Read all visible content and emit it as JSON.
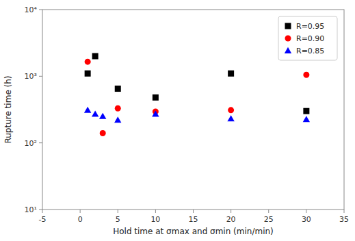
{
  "chart_data": {
    "type": "scatter",
    "x_label": "Hold time at σmax and σmin (min/min)",
    "y_label": "Rupture time (h)",
    "log": "y",
    "grid": false,
    "legend": "upper right",
    "xlim": [
      -5,
      35
    ],
    "ylim": [
      10,
      10000
    ],
    "xticks": [
      -5,
      0,
      5,
      10,
      15,
      20,
      25,
      30,
      35
    ],
    "yticks": [
      {
        "value": 10,
        "label": "10¹"
      },
      {
        "value": 100,
        "label": "10²"
      },
      {
        "value": 1000,
        "label": "10³"
      },
      {
        "value": 10000,
        "label": "10⁴"
      }
    ],
    "series": [
      {
        "name": "R=0.95",
        "color": "#000000",
        "marker": "square",
        "x": [
          1,
          2,
          5,
          10,
          20,
          30
        ],
        "values": [
          1100,
          2000,
          650,
          480,
          1100,
          300
        ]
      },
      {
        "name": "R=0.90",
        "color": "#ff0000",
        "marker": "circle",
        "x": [
          1,
          3,
          5,
          10,
          20,
          30
        ],
        "values": [
          1650,
          140,
          330,
          295,
          310,
          1050
        ]
      },
      {
        "name": "R=0.85",
        "color": "#0000ff",
        "marker": "triangle",
        "x": [
          1,
          2,
          3,
          5,
          10,
          20,
          30
        ],
        "values": [
          310,
          270,
          250,
          220,
          270,
          230,
          225
        ]
      }
    ]
  }
}
